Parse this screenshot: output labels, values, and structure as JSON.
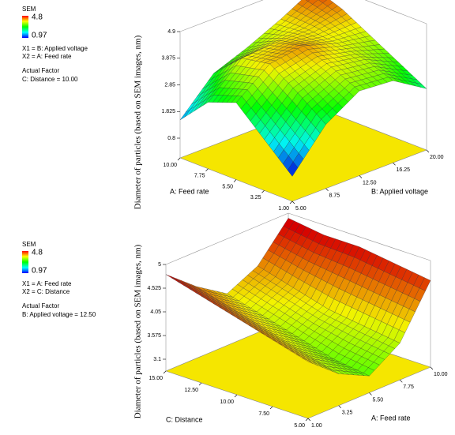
{
  "chart_data": [
    {
      "type": "surface",
      "legend_title": "SEM",
      "color_max": 4.8,
      "color_min": 0.97,
      "legend_lines": [
        "X1 = B: Applied voltage",
        "X2 = A: Feed rate",
        "Actual Factor",
        "C: Distance = 10.00"
      ],
      "zlabel": "Diameter of particles (based on SEM images, nm)",
      "x1label": "B: Applied voltage",
      "x2label": "A: Feed rate",
      "x1lim": [
        5,
        20
      ],
      "x1ticks": [
        {
          "value": 5,
          "label": "5.00"
        },
        {
          "value": 8.75,
          "label": "8.75"
        },
        {
          "value": 12.5,
          "label": "12.50"
        },
        {
          "value": 16.25,
          "label": "16.25"
        },
        {
          "value": 20,
          "label": "20.00"
        }
      ],
      "x2lim": [
        1,
        10
      ],
      "x2ticks": [
        {
          "value": 1,
          "label": "1.00"
        },
        {
          "value": 3.25,
          "label": "3.25"
        },
        {
          "value": 5.5,
          "label": "5.50"
        },
        {
          "value": 7.75,
          "label": "7.75"
        },
        {
          "value": 10,
          "label": "10.00"
        }
      ],
      "zlim": [
        0.8,
        4.9
      ],
      "zticks": [
        0.8,
        1.825,
        2.85,
        3.875,
        4.9
      ],
      "z": [
        [
          1.0,
          2.5,
          3.3,
          3.2,
          2.4
        ],
        [
          2.0,
          3.3,
          3.8,
          3.6,
          3.0
        ],
        [
          3.0,
          4.0,
          4.2,
          3.8,
          3.6
        ],
        [
          2.6,
          3.8,
          3.9,
          3.9,
          4.2
        ],
        [
          1.5,
          2.8,
          3.3,
          3.9,
          4.6
        ]
      ],
      "floor_color": "#f5e600"
    },
    {
      "type": "surface",
      "legend_title": "SEM",
      "color_max": 4.8,
      "color_min": 0.97,
      "legend_lines": [
        "X1 = A: Feed rate",
        "X2 = C: Distance",
        "Actual Factor",
        "B: Applied voltage = 12.50"
      ],
      "zlabel": "Diameter of particles (based on SEM images, nm)",
      "x1label": "A: Feed rate",
      "x2label": "C: Distance",
      "x1lim": [
        1,
        10
      ],
      "x1ticks": [
        {
          "value": 1,
          "label": "1.00"
        },
        {
          "value": 3.25,
          "label": "3.25"
        },
        {
          "value": 5.5,
          "label": "5.50"
        },
        {
          "value": 7.75,
          "label": "7.75"
        },
        {
          "value": 10,
          "label": "10.00"
        }
      ],
      "x2lim": [
        5,
        15
      ],
      "x2ticks": [
        {
          "value": 5,
          "label": "5.00"
        },
        {
          "value": 7.5,
          "label": "7.50"
        },
        {
          "value": 10,
          "label": "10.00"
        },
        {
          "value": 12.5,
          "label": "12.50"
        },
        {
          "value": 15,
          "label": "15.00"
        }
      ],
      "zlim": [
        3.1,
        5
      ],
      "zticks": [
        3.1,
        3.575,
        4.05,
        4.525,
        5
      ],
      "z": [
        [
          4.0,
          3.5,
          3.2,
          3.6,
          4.6
        ],
        [
          4.2,
          3.7,
          3.3,
          3.7,
          4.7
        ],
        [
          4.4,
          3.9,
          3.5,
          3.8,
          4.8
        ],
        [
          4.6,
          4.1,
          3.7,
          4.0,
          4.8
        ],
        [
          4.8,
          4.3,
          3.9,
          4.2,
          4.9
        ]
      ],
      "floor_color": "#f5e600"
    }
  ]
}
